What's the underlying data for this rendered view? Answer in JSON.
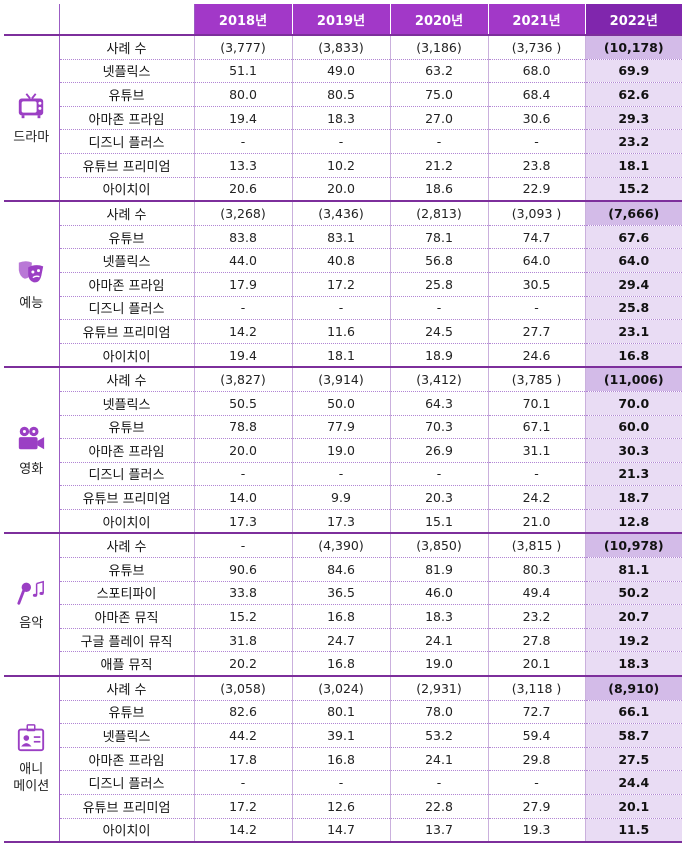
{
  "header": {
    "corner": "",
    "years": [
      "2018년",
      "2019년",
      "2020년",
      "2021년",
      "2022년"
    ]
  },
  "groups": [
    {
      "genre": "드라마",
      "icon": "tv-icon",
      "rows": [
        {
          "platform": "사례 수",
          "values": [
            "(3,777)",
            "(3,833)",
            "(3,186)",
            "(3,736 )",
            "(10,178)"
          ]
        },
        {
          "platform": "넷플릭스",
          "values": [
            "51.1",
            "49.0",
            "63.2",
            "68.0",
            "69.9"
          ]
        },
        {
          "platform": "유튜브",
          "values": [
            "80.0",
            "80.5",
            "75.0",
            "68.4",
            "62.6"
          ]
        },
        {
          "platform": "아마존 프라임",
          "values": [
            "19.4",
            "18.3",
            "27.0",
            "30.6",
            "29.3"
          ]
        },
        {
          "platform": "디즈니 플러스",
          "values": [
            "-",
            "-",
            "-",
            "-",
            "23.2"
          ]
        },
        {
          "platform": "유튜브 프리미엄",
          "values": [
            "13.3",
            "10.2",
            "21.2",
            "23.8",
            "18.1"
          ]
        },
        {
          "platform": "아이치이",
          "values": [
            "20.6",
            "20.0",
            "18.6",
            "22.9",
            "15.2"
          ]
        }
      ]
    },
    {
      "genre": "예능",
      "icon": "theater-masks-icon",
      "rows": [
        {
          "platform": "사례 수",
          "values": [
            "(3,268)",
            "(3,436)",
            "(2,813)",
            "(3,093 )",
            "(7,666)"
          ]
        },
        {
          "platform": "유튜브",
          "values": [
            "83.8",
            "83.1",
            "78.1",
            "74.7",
            "67.6"
          ]
        },
        {
          "platform": "넷플릭스",
          "values": [
            "44.0",
            "40.8",
            "56.8",
            "64.0",
            "64.0"
          ]
        },
        {
          "platform": "아마존 프라임",
          "values": [
            "17.9",
            "17.2",
            "25.8",
            "30.5",
            "29.4"
          ]
        },
        {
          "platform": "디즈니 플러스",
          "values": [
            "-",
            "-",
            "-",
            "-",
            "25.8"
          ]
        },
        {
          "platform": "유튜브 프리미엄",
          "values": [
            "14.2",
            "11.6",
            "24.5",
            "27.7",
            "23.1"
          ]
        },
        {
          "platform": "아이치이",
          "values": [
            "19.4",
            "18.1",
            "18.9",
            "24.6",
            "16.8"
          ]
        }
      ]
    },
    {
      "genre": "영화",
      "icon": "movie-camera-icon",
      "rows": [
        {
          "platform": "사례 수",
          "values": [
            "(3,827)",
            "(3,914)",
            "(3,412)",
            "(3,785 )",
            "(11,006)"
          ]
        },
        {
          "platform": "넷플릭스",
          "values": [
            "50.5",
            "50.0",
            "64.3",
            "70.1",
            "70.0"
          ]
        },
        {
          "platform": "유튜브",
          "values": [
            "78.8",
            "77.9",
            "70.3",
            "67.1",
            "60.0"
          ]
        },
        {
          "platform": "아마존 프라임",
          "values": [
            "20.0",
            "19.0",
            "26.9",
            "31.1",
            "30.3"
          ]
        },
        {
          "platform": "디즈니 플러스",
          "values": [
            "-",
            "-",
            "-",
            "-",
            "21.3"
          ]
        },
        {
          "platform": "유튜브 프리미엄",
          "values": [
            "14.0",
            "9.9",
            "20.3",
            "24.2",
            "18.7"
          ]
        },
        {
          "platform": "아이치이",
          "values": [
            "17.3",
            "17.3",
            "15.1",
            "21.0",
            "12.8"
          ]
        }
      ]
    },
    {
      "genre": "음악",
      "icon": "microphone-music-icon",
      "rows": [
        {
          "platform": "사례 수",
          "values": [
            "-",
            "(4,390)",
            "(3,850)",
            "(3,815 )",
            "(10,978)"
          ]
        },
        {
          "platform": "유튜브",
          "values": [
            "90.6",
            "84.6",
            "81.9",
            "80.3",
            "81.1"
          ]
        },
        {
          "platform": "스포티파이",
          "values": [
            "33.8",
            "36.5",
            "46.0",
            "49.4",
            "50.2"
          ]
        },
        {
          "platform": "아마존 뮤직",
          "values": [
            "15.2",
            "16.8",
            "18.3",
            "23.2",
            "20.7"
          ]
        },
        {
          "platform": "구글 플레이 뮤직",
          "values": [
            "31.8",
            "24.7",
            "24.1",
            "27.8",
            "19.2"
          ]
        },
        {
          "platform": "애플 뮤직",
          "values": [
            "20.2",
            "16.8",
            "19.0",
            "20.1",
            "18.3"
          ]
        }
      ]
    },
    {
      "genre": "애니\n메이션",
      "icon": "character-card-icon",
      "rows": [
        {
          "platform": "사례 수",
          "values": [
            "(3,058)",
            "(3,024)",
            "(2,931)",
            "(3,118 )",
            "(8,910)"
          ]
        },
        {
          "platform": "유튜브",
          "values": [
            "82.6",
            "80.1",
            "78.0",
            "72.7",
            "66.1"
          ]
        },
        {
          "platform": "넷플릭스",
          "values": [
            "44.2",
            "39.1",
            "53.2",
            "59.4",
            "58.7"
          ]
        },
        {
          "platform": "아마존 프라임",
          "values": [
            "17.8",
            "16.8",
            "24.1",
            "29.8",
            "27.5"
          ]
        },
        {
          "platform": "디즈니 플러스",
          "values": [
            "-",
            "-",
            "-",
            "-",
            "24.4"
          ]
        },
        {
          "platform": "유튜브 프리미엄",
          "values": [
            "17.2",
            "12.6",
            "22.8",
            "27.9",
            "20.1"
          ]
        },
        {
          "platform": "아이치이",
          "values": [
            "14.2",
            "14.7",
            "13.7",
            "19.3",
            "11.5"
          ]
        }
      ]
    }
  ],
  "colors": {
    "header": "#a238c8",
    "header_2022": "#8026ad",
    "col_2022": "#e9dcf4",
    "count_2022": "#d3bbe8",
    "icon": "#9b3fc4"
  }
}
